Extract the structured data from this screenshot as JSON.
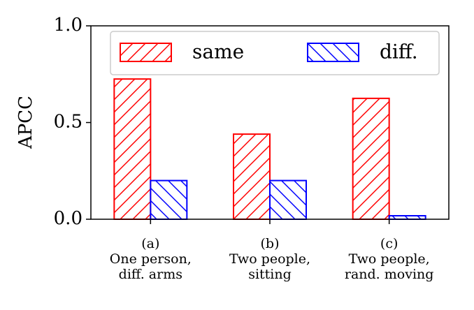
{
  "chart_data": {
    "type": "bar",
    "ylabel": "APCC",
    "categories": [
      [
        "(a)",
        "One person,",
        "diff. arms"
      ],
      [
        "(b)",
        "Two people,",
        "sitting"
      ],
      [
        "(c)",
        "Two people,",
        "rand. moving"
      ]
    ],
    "series": [
      {
        "name": "same",
        "color": "#ff0000",
        "hatch": "/",
        "values": [
          0.725,
          0.44,
          0.625
        ]
      },
      {
        "name": "diff.",
        "color": "#0000ff",
        "hatch": "\\",
        "values": [
          0.2,
          0.2,
          0.018
        ]
      }
    ],
    "ylim": [
      0,
      1
    ],
    "yticks": [
      {
        "value": 0,
        "label": "0.0"
      },
      {
        "value": 0.5,
        "label": "0.5"
      },
      {
        "value": 1,
        "label": "1.0"
      }
    ],
    "legend": "upper center"
  }
}
